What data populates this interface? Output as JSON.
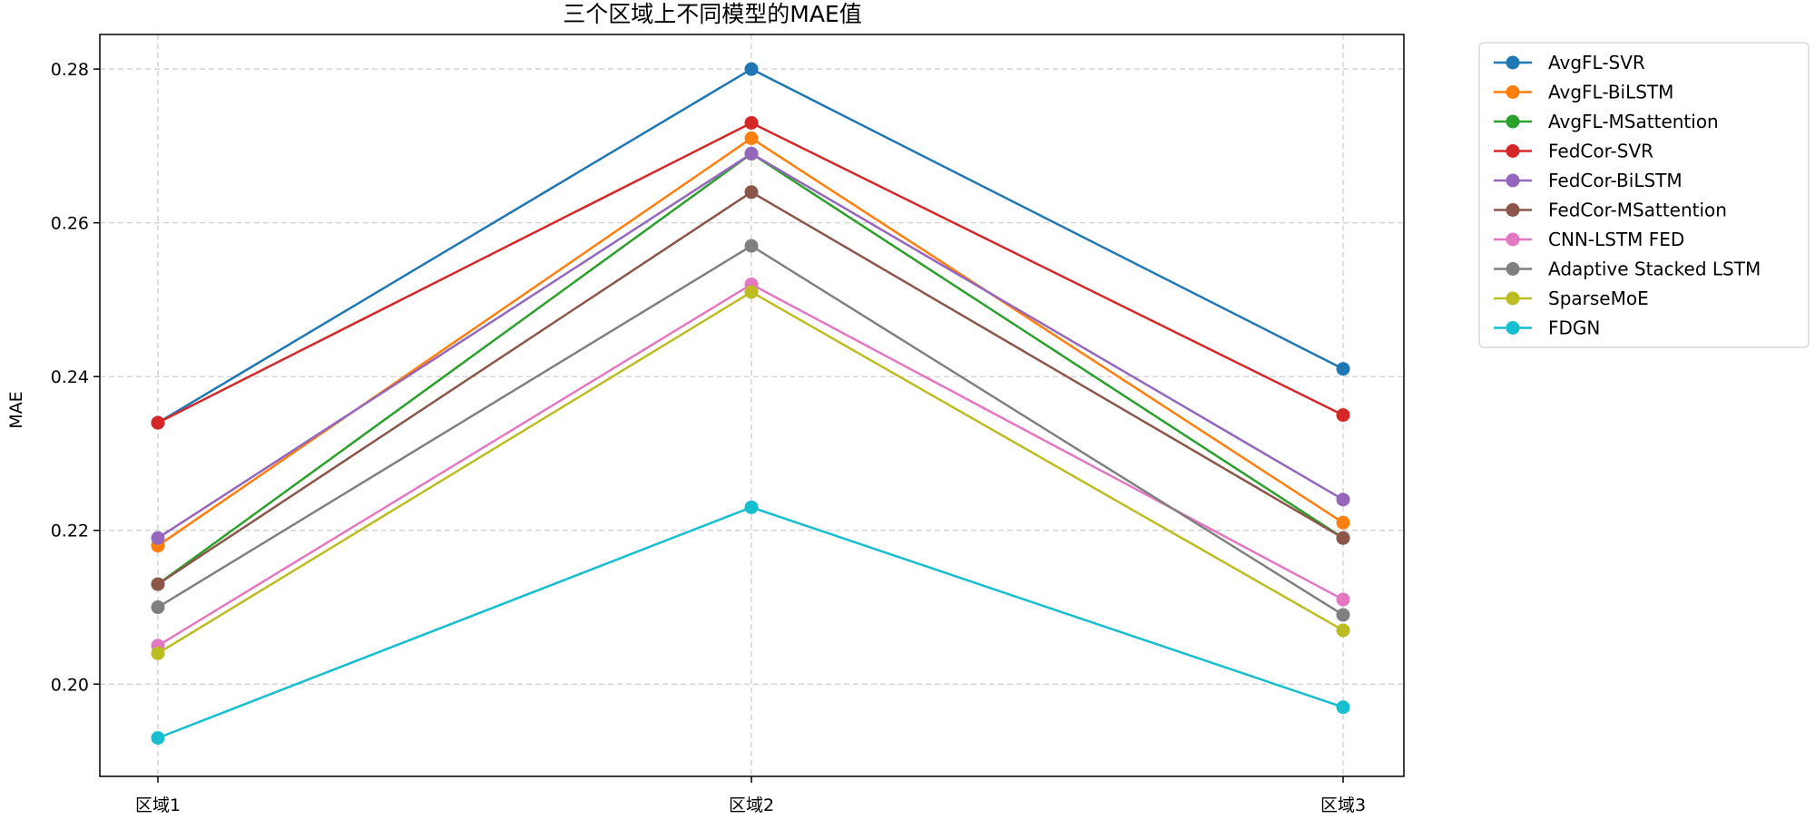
{
  "chart_data": {
    "type": "line",
    "title": "三个区域上不同模型的MAE值",
    "xlabel": "",
    "ylabel": "MAE",
    "categories": [
      "区域1",
      "区域2",
      "区域3"
    ],
    "ylim": [
      0.188,
      0.2845
    ],
    "yticks": [
      "0.20",
      "0.22",
      "0.24",
      "0.26",
      "0.28"
    ],
    "grid": true,
    "legend_position": "outside-top-right",
    "series": [
      {
        "name": "AvgFL-SVR",
        "color": "#1f77b4",
        "values": [
          0.234,
          0.28,
          0.241
        ]
      },
      {
        "name": "AvgFL-BiLSTM",
        "color": "#ff7f0e",
        "values": [
          0.218,
          0.271,
          0.221
        ]
      },
      {
        "name": "AvgFL-MSattention",
        "color": "#2ca02c",
        "values": [
          0.213,
          0.269,
          0.219
        ]
      },
      {
        "name": "FedCor-SVR",
        "color": "#d62728",
        "values": [
          0.234,
          0.273,
          0.235
        ]
      },
      {
        "name": "FedCor-BiLSTM",
        "color": "#9467bd",
        "values": [
          0.219,
          0.269,
          0.224
        ]
      },
      {
        "name": "FedCor-MSattention",
        "color": "#8c564b",
        "values": [
          0.213,
          0.264,
          0.219
        ]
      },
      {
        "name": "CNN-LSTM FED",
        "color": "#e377c2",
        "values": [
          0.205,
          0.252,
          0.211
        ]
      },
      {
        "name": "Adaptive Stacked LSTM",
        "color": "#7f7f7f",
        "values": [
          0.21,
          0.257,
          0.209
        ]
      },
      {
        "name": "SparseMoE",
        "color": "#bcbd22",
        "values": [
          0.204,
          0.251,
          0.207
        ]
      },
      {
        "name": "FDGN",
        "color": "#17becf",
        "values": [
          0.193,
          0.223,
          0.197
        ]
      }
    ]
  }
}
